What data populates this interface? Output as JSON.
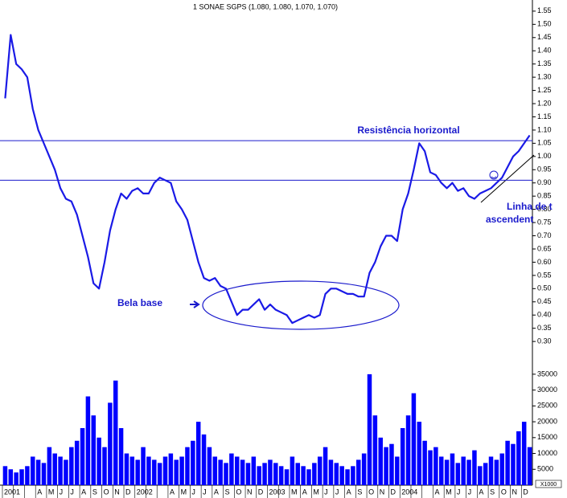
{
  "chart_data": {
    "type": "line",
    "title": "1 SONAE SGPS (1.080, 1.080, 1.070, 1.070)",
    "categories": [
      "2001",
      null,
      null,
      null,
      null,
      null,
      "A",
      null,
      "M",
      null,
      "J",
      null,
      "J",
      null,
      "A",
      null,
      "S",
      null,
      "O",
      null,
      "N",
      null,
      "D",
      null,
      "2002",
      null,
      null,
      null,
      null,
      null,
      "A",
      null,
      "M",
      null,
      "J",
      null,
      "J",
      null,
      "A",
      null,
      "S",
      null,
      "O",
      null,
      "N",
      null,
      "D",
      null,
      "2003",
      null,
      null,
      null,
      "M",
      null,
      "A",
      null,
      "M",
      null,
      "J",
      null,
      "J",
      null,
      "A",
      null,
      "S",
      null,
      "O",
      null,
      "N",
      null,
      "D",
      null,
      "2004",
      null,
      null,
      null,
      null,
      null,
      "A",
      null,
      "M",
      null,
      "J",
      null,
      "J",
      null,
      "A",
      null,
      "S",
      null,
      "O",
      null,
      "N",
      null,
      "D",
      null
    ],
    "series": [
      {
        "name": "SONAE SGPS",
        "color": "#1a1ae6",
        "values": [
          1.22,
          1.46,
          1.35,
          1.33,
          1.3,
          1.18,
          1.1,
          1.05,
          1.0,
          0.95,
          0.88,
          0.84,
          0.83,
          0.78,
          0.7,
          0.62,
          0.52,
          0.5,
          0.6,
          0.72,
          0.8,
          0.86,
          0.84,
          0.87,
          0.88,
          0.86,
          0.86,
          0.9,
          0.92,
          0.91,
          0.9,
          0.83,
          0.8,
          0.76,
          0.68,
          0.6,
          0.54,
          0.53,
          0.54,
          0.51,
          0.5,
          0.45,
          0.4,
          0.42,
          0.42,
          0.44,
          0.46,
          0.42,
          0.44,
          0.42,
          0.41,
          0.4,
          0.37,
          0.38,
          0.39,
          0.4,
          0.39,
          0.4,
          0.48,
          0.5,
          0.5,
          0.49,
          0.48,
          0.48,
          0.47,
          0.47,
          0.56,
          0.6,
          0.66,
          0.7,
          0.7,
          0.68,
          0.8,
          0.86,
          0.95,
          1.05,
          1.02,
          0.94,
          0.93,
          0.9,
          0.88,
          0.9,
          0.87,
          0.88,
          0.85,
          0.84,
          0.86,
          0.87,
          0.88,
          0.9,
          0.92,
          0.96,
          1.0,
          1.02,
          1.05,
          1.08
        ]
      },
      {
        "name": "Volume",
        "color": "#0000ff",
        "axis": "y2",
        "values": [
          6000,
          5000,
          4000,
          5000,
          6000,
          9000,
          8000,
          7000,
          12000,
          10000,
          9000,
          8000,
          12000,
          14000,
          18000,
          28000,
          22000,
          15000,
          12000,
          26000,
          33000,
          18000,
          10000,
          9000,
          8000,
          12000,
          9000,
          8000,
          7000,
          9000,
          10000,
          8000,
          9000,
          12000,
          14000,
          20000,
          16000,
          12000,
          9000,
          8000,
          7000,
          10000,
          9000,
          8000,
          7000,
          9000,
          6000,
          7000,
          8000,
          7000,
          6000,
          5000,
          9000,
          7000,
          6000,
          5000,
          7000,
          9000,
          12000,
          8000,
          7000,
          6000,
          5000,
          6000,
          8000,
          10000,
          35000,
          22000,
          15000,
          12000,
          13000,
          9000,
          18000,
          22000,
          29000,
          20000,
          14000,
          11000,
          12000,
          9000,
          8000,
          10000,
          7000,
          9000,
          8000,
          11000,
          6000,
          7000,
          9000,
          8000,
          10000,
          14000,
          13000,
          17000,
          20000,
          12000
        ]
      }
    ],
    "ylim": [
      0.27,
      1.58
    ],
    "yticks": [
      {
        "value": 0.3,
        "label": "0.30"
      },
      {
        "value": 0.35,
        "label": "0.35"
      },
      {
        "value": 0.4,
        "label": "0.40"
      },
      {
        "value": 0.45,
        "label": "0.45"
      },
      {
        "value": 0.5,
        "label": "0.50"
      },
      {
        "value": 0.55,
        "label": "0.55"
      },
      {
        "value": 0.6,
        "label": "0.60"
      },
      {
        "value": 0.65,
        "label": "0.65"
      },
      {
        "value": 0.7,
        "label": "0.70"
      },
      {
        "value": 0.75,
        "label": "0.75"
      },
      {
        "value": 0.8,
        "label": "0.80"
      },
      {
        "value": 0.85,
        "label": "0.85"
      },
      {
        "value": 0.9,
        "label": "0.90"
      },
      {
        "value": 0.95,
        "label": "0.95"
      },
      {
        "value": 1.0,
        "label": "1.00"
      },
      {
        "value": 1.05,
        "label": "1.05"
      },
      {
        "value": 1.1,
        "label": "1.10"
      },
      {
        "value": 1.15,
        "label": "1.15"
      },
      {
        "value": 1.2,
        "label": "1.20"
      },
      {
        "value": 1.25,
        "label": "1.25"
      },
      {
        "value": 1.3,
        "label": "1.30"
      },
      {
        "value": 1.35,
        "label": "1.35"
      },
      {
        "value": 1.4,
        "label": "1.40"
      },
      {
        "value": 1.45,
        "label": "1.45"
      },
      {
        "value": 1.5,
        "label": "1.50"
      },
      {
        "value": 1.55,
        "label": "1.55"
      }
    ],
    "y2lim": [
      0,
      37000
    ],
    "y2ticks": [
      5000,
      10000,
      15000,
      20000,
      25000,
      30000,
      35000
    ],
    "volume_unit": "X1000",
    "levels": [
      1.06,
      0.91
    ],
    "annotations": [
      "Resistência horizontal",
      "Bela base",
      "Linha de t",
      "ascendent"
    ]
  }
}
